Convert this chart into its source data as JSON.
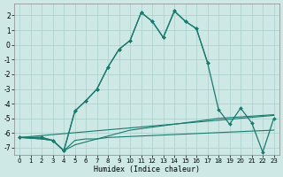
{
  "xlabel": "Humidex (Indice chaleur)",
  "background_color": "#cde8e5",
  "grid_color": "#aacfcc",
  "line_color": "#1a7a6e",
  "xlim": [
    -0.5,
    23.5
  ],
  "ylim": [
    -7.5,
    2.8
  ],
  "yticks": [
    -7,
    -6,
    -5,
    -4,
    -3,
    -2,
    -1,
    0,
    1,
    2
  ],
  "xticks": [
    0,
    1,
    2,
    3,
    4,
    5,
    6,
    7,
    8,
    9,
    10,
    11,
    12,
    13,
    14,
    15,
    16,
    17,
    18,
    19,
    20,
    21,
    22,
    23
  ],
  "lines": [
    {
      "x": [
        0,
        2,
        3,
        4,
        5,
        6,
        7,
        8,
        9,
        10,
        11,
        12,
        13,
        14,
        15,
        16,
        17,
        18,
        19,
        20,
        21,
        22,
        23
      ],
      "y": [
        -6.3,
        -6.3,
        -6.5,
        -7.2,
        -4.5,
        -3.8,
        -3.0,
        -1.5,
        -0.3,
        0.3,
        2.2,
        1.6,
        0.5,
        2.3,
        1.6,
        1.1,
        -1.2,
        -4.4,
        -5.4,
        -4.3,
        -5.3,
        -7.3,
        -5.0
      ],
      "has_markers": true
    },
    {
      "x": [
        0,
        23
      ],
      "y": [
        -6.3,
        -4.8
      ],
      "has_markers": false
    },
    {
      "x": [
        0,
        2,
        3,
        4,
        5,
        6,
        7,
        8,
        9,
        10,
        11,
        12,
        13,
        14,
        15,
        16,
        17,
        18,
        19,
        20,
        21,
        22,
        23
      ],
      "y": [
        -6.3,
        -6.4,
        -6.5,
        -7.2,
        -6.8,
        -6.6,
        -6.4,
        -6.2,
        -6.0,
        -5.8,
        -5.7,
        -5.6,
        -5.5,
        -5.4,
        -5.3,
        -5.2,
        -5.1,
        -5.0,
        -4.95,
        -4.9,
        -4.85,
        -4.8,
        -4.75
      ],
      "has_markers": false
    },
    {
      "x": [
        0,
        2,
        3,
        4,
        5,
        6,
        7,
        8,
        23
      ],
      "y": [
        -6.3,
        -6.4,
        -6.5,
        -7.2,
        -6.5,
        -6.4,
        -6.4,
        -6.3,
        -5.8
      ],
      "has_markers": false
    },
    {
      "x": [
        0,
        2,
        3,
        4,
        5,
        6,
        7,
        8,
        9,
        10,
        11,
        12,
        13,
        14,
        15,
        16,
        17
      ],
      "y": [
        -6.3,
        -6.3,
        -6.5,
        -7.2,
        -4.5,
        -3.8,
        -3.0,
        -1.5,
        -0.3,
        0.3,
        2.2,
        1.6,
        0.5,
        2.3,
        1.6,
        1.1,
        -1.2
      ],
      "has_markers": true
    }
  ]
}
